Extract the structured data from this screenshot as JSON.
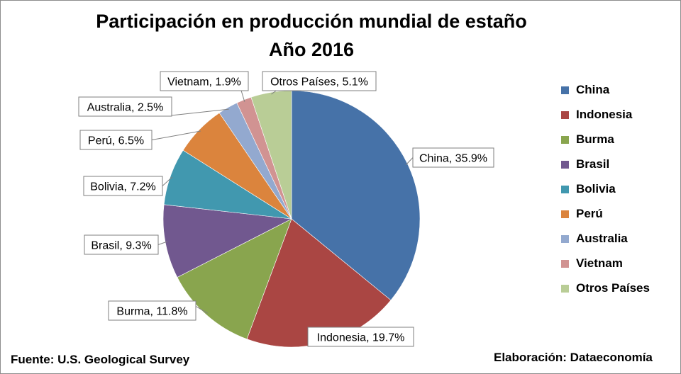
{
  "chart_data": {
    "type": "pie",
    "title": "Participación en producción mundial de estaño",
    "subtitle": "Año 2016",
    "legend_position": "right",
    "slices": [
      {
        "label": "China",
        "value": 35.9,
        "data_label": "China, 35.9%",
        "color": "#4672a8"
      },
      {
        "label": "Indonesia",
        "value": 19.7,
        "data_label": "Indonesia, 19.7%",
        "color": "#aa4643"
      },
      {
        "label": "Burma",
        "value": 11.8,
        "data_label": "Burma, 11.8%",
        "color": "#89a54e"
      },
      {
        "label": "Brasil",
        "value": 9.3,
        "data_label": "Brasil, 9.3%",
        "color": "#71588f"
      },
      {
        "label": "Bolivia",
        "value": 7.2,
        "data_label": "Bolivia, 7.2%",
        "color": "#4198af"
      },
      {
        "label": "Perú",
        "value": 6.5,
        "data_label": "Perú, 6.5%",
        "color": "#db843d"
      },
      {
        "label": "Australia",
        "value": 2.5,
        "data_label": "Australia, 2.5%",
        "color": "#93a9cf"
      },
      {
        "label": "Vietnam",
        "value": 1.9,
        "data_label": "Vietnam, 1.9%",
        "color": "#d19392"
      },
      {
        "label": "Otros Países",
        "value": 5.1,
        "data_label": "Otros Países, 5.1%",
        "color": "#b9cd96"
      }
    ]
  },
  "footer": {
    "source": "Fuente: U.S. Geological Survey",
    "credit": "Elaboración: Dataeconomía"
  }
}
